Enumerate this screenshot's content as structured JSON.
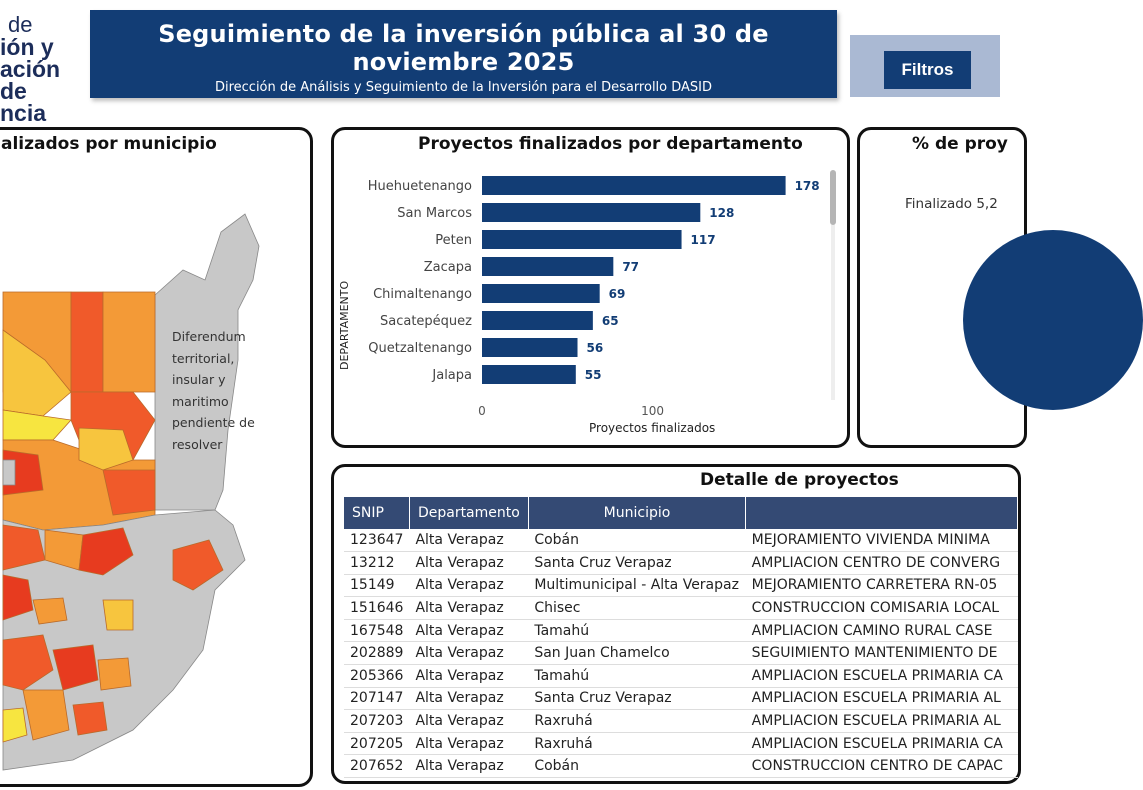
{
  "header": {
    "logo_lines": [
      "de",
      "ión y",
      "ación de",
      "ncia"
    ],
    "title": "Seguimiento de la inversión pública al 30 de noviembre 2025",
    "subtitle": "Dirección de Análisis y Seguimiento de la Inversión para el Desarrollo DASID",
    "filter_button": "Filtros"
  },
  "map_panel": {
    "title": "alizados por municipio",
    "note": "Diferendum territorial, insular y maritimo pendiente de resolver",
    "colors": {
      "neutral": "#c8c8c8",
      "low": "#f7c53e",
      "mid": "#f39a37",
      "high": "#f05a2a",
      "max": "#e73b1f"
    }
  },
  "bar_panel": {
    "title": "Proyectos finalizados por departamento",
    "y_axis_label": "DEPARTAMENTO",
    "x_axis_label": "Proyectos finalizados",
    "chart_data": {
      "type": "bar",
      "orientation": "horizontal",
      "categories": [
        "Huehuetenango",
        "San Marcos",
        "Peten",
        "Zacapa",
        "Chimaltenango",
        "Sacatepéquez",
        "Quetzaltenango",
        "Jalapa"
      ],
      "values": [
        178,
        128,
        117,
        77,
        69,
        65,
        56,
        55
      ],
      "ticks": [
        0,
        100
      ],
      "xlim": [
        0,
        180
      ],
      "bar_color": "#123d75",
      "label_color": "#123d75"
    }
  },
  "pie_panel": {
    "title": "% de proy",
    "label": "Finalizado 5,2"
  },
  "table_panel": {
    "title": "Detalle de proyectos",
    "columns": [
      "SNIP",
      "Departamento",
      "Municipio",
      ""
    ],
    "rows": [
      [
        "123647",
        "Alta Verapaz",
        "Cobán",
        "MEJORAMIENTO VIVIENDA MINIMA"
      ],
      [
        "13212",
        "Alta Verapaz",
        "Santa Cruz Verapaz",
        "AMPLIACION CENTRO DE CONVERG"
      ],
      [
        "15149",
        "Alta Verapaz",
        "Multimunicipal - Alta Verapaz",
        "MEJORAMIENTO CARRETERA RN-05"
      ],
      [
        "151646",
        "Alta Verapaz",
        "Chisec",
        "CONSTRUCCION COMISARIA LOCAL"
      ],
      [
        "167548",
        "Alta Verapaz",
        "Tamahú",
        "AMPLIACION CAMINO RURAL CASE"
      ],
      [
        "202889",
        "Alta Verapaz",
        "San Juan Chamelco",
        "SEGUIMIENTO MANTENIMIENTO DE"
      ],
      [
        "205366",
        "Alta Verapaz",
        "Tamahú",
        "AMPLIACION ESCUELA PRIMARIA CA"
      ],
      [
        "207147",
        "Alta Verapaz",
        "Santa Cruz Verapaz",
        "AMPLIACION ESCUELA PRIMARIA AL"
      ],
      [
        "207203",
        "Alta Verapaz",
        "Raxruhá",
        "AMPLIACION ESCUELA PRIMARIA AL"
      ],
      [
        "207205",
        "Alta Verapaz",
        "Raxruhá",
        "AMPLIACION ESCUELA PRIMARIA CA"
      ],
      [
        "207652",
        "Alta Verapaz",
        "Cobán",
        "CONSTRUCCION CENTRO DE CAPAC"
      ]
    ]
  }
}
